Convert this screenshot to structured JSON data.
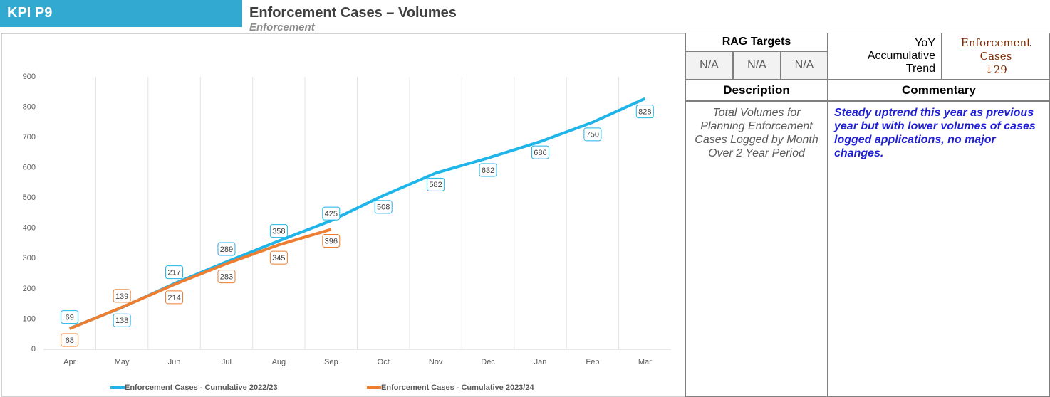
{
  "header": {
    "kpi": "KPI P9",
    "title": "Enforcement Cases – Volumes",
    "subtitle": "Enforcement"
  },
  "chart_data": {
    "type": "line",
    "categories": [
      "Apr",
      "May",
      "Jun",
      "Jul",
      "Aug",
      "Sep",
      "Oct",
      "Nov",
      "Dec",
      "Jan",
      "Feb",
      "Mar"
    ],
    "series": [
      {
        "name": "Enforcement Cases - Cumulative 2022/23",
        "color": "#1fb5e9",
        "values": [
          69,
          138,
          217,
          289,
          358,
          425,
          508,
          582,
          632,
          686,
          750,
          828
        ]
      },
      {
        "name": "Enforcement Cases - Cumulative 2023/24",
        "color": "#ed7d31",
        "values": [
          68,
          139,
          214,
          283,
          345,
          396,
          null,
          null,
          null,
          null,
          null,
          null
        ]
      }
    ],
    "ylim": [
      0,
      900
    ],
    "yticks": [
      0,
      100,
      200,
      300,
      400,
      500,
      600,
      700,
      800,
      900
    ],
    "grid": "vertical",
    "legend": "bottom"
  },
  "panel": {
    "rag_title": "RAG Targets",
    "rag": [
      "N/A",
      "N/A",
      "N/A"
    ],
    "trend_label": "YoY Accumulative Trend",
    "trend_name": "Enforcement Cases",
    "trend_value": "↓29",
    "description_title": "Description",
    "commentary_title": "Commentary",
    "description": "Total Volumes for Planning Enforcement Cases Logged by Month Over 2 Year Period",
    "commentary": "Steady uptrend this year as previous year but with lower volumes of cases logged applications, no major changes."
  }
}
